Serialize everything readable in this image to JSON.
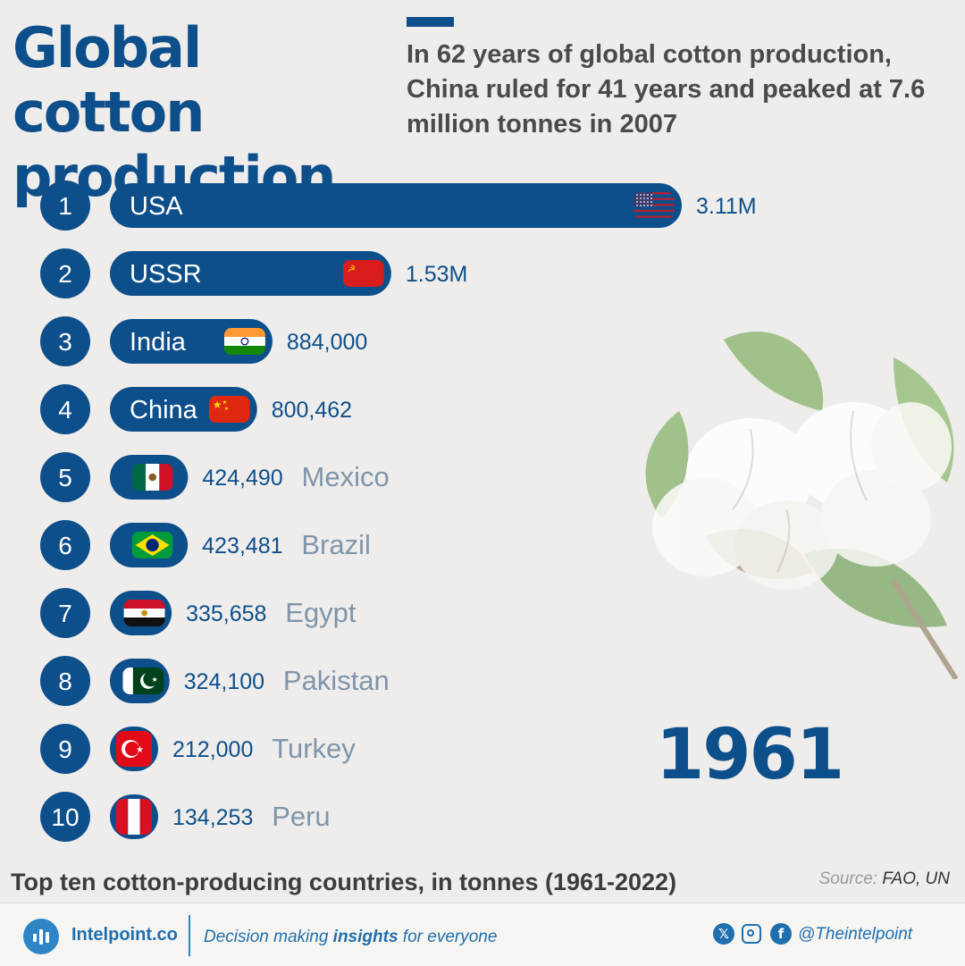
{
  "header": {
    "title": "Global cotton production",
    "subtitle": "In 62 years of global cotton production, China ruled for 41 years and peaked at 7.6 million tonnes in 2007"
  },
  "colors": {
    "primary": "#0d4f8b",
    "accent": "#2f86c6",
    "background": "#efedeb",
    "label_muted": "#7f95aa"
  },
  "chart_data": {
    "type": "bar",
    "orientation": "horizontal",
    "year": "1961",
    "categories": [
      "USA",
      "USSR",
      "India",
      "China",
      "Mexico",
      "Brazil",
      "Egypt",
      "Pakistan",
      "Turkey",
      "Peru"
    ],
    "ranks": [
      "1",
      "2",
      "3",
      "4",
      "5",
      "6",
      "7",
      "8",
      "9",
      "10"
    ],
    "values": [
      3110000,
      1530000,
      884000,
      800462,
      424490,
      423481,
      335658,
      324100,
      212000,
      134253
    ],
    "value_labels": [
      "3.11M",
      "1.53M",
      "884,000",
      "800,462",
      "424,490",
      "423,481",
      "335,658",
      "324,100",
      "212,000",
      "134,253"
    ],
    "flags": [
      "usa-flag",
      "ussr-flag",
      "india-flag",
      "china-flag",
      "mexico-flag",
      "brazil-flag",
      "egypt-flag",
      "pakistan-flag",
      "turkey-flag",
      "peru-flag"
    ],
    "unit": "tonnes"
  },
  "caption": "Top ten cotton-producing countries, in tonnes (1961-2022)",
  "source": {
    "label": "Source:",
    "value": "FAO, UN"
  },
  "footer": {
    "brand": "Intelpoint.co",
    "tagline_pre": "Decision making ",
    "tagline_bold": "insights",
    "tagline_post": " for everyone",
    "social_icons": [
      "x-icon",
      "instagram-icon",
      "facebook-icon"
    ],
    "handle": "@Theintelpoint"
  }
}
